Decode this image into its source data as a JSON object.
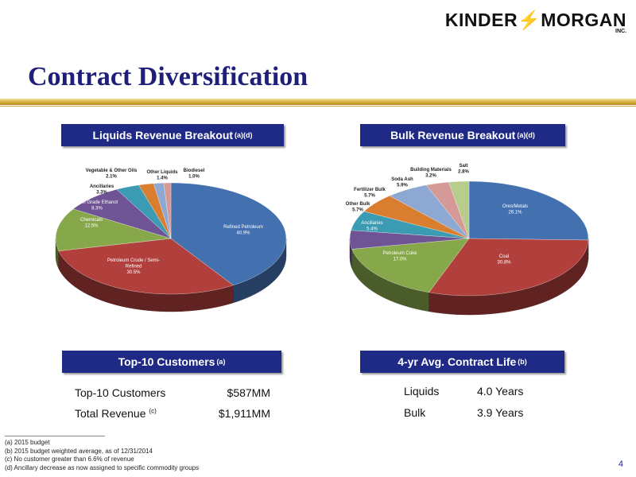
{
  "logo": {
    "name_left": "KINDER",
    "name_right": "MORGAN",
    "suffix": "INC."
  },
  "title": "Contract Diversification",
  "liquids": {
    "header": "Liquids Revenue Breakout",
    "header_sup": "(a)(d)",
    "chart_data": {
      "type": "pie",
      "slices": [
        {
          "label": "Refined Petroleum",
          "value_text": "40.9%",
          "value": 40.9,
          "color": "#4371b0"
        },
        {
          "label": "Petroleum Crude / Semi-Refined",
          "value_text": "30.5%",
          "value": 30.5,
          "color": "#b1403c"
        },
        {
          "label": "Chemicals",
          "value_text": "12.5%",
          "value": 12.5,
          "color": "#87a84a"
        },
        {
          "label": "Fuel Grade Ethanol",
          "value_text": "8.3%",
          "value": 8.3,
          "color": "#6f5495"
        },
        {
          "label": "Ancillaries",
          "value_text": "3.3%",
          "value": 3.3,
          "color": "#3b9bb3"
        },
        {
          "label": "Vegetable & Other Oils",
          "value_text": "2.1%",
          "value": 2.1,
          "color": "#d97e2e"
        },
        {
          "label": "Other Liquids",
          "value_text": "1.4%",
          "value": 1.4,
          "color": "#8ea8d4"
        },
        {
          "label": "Biodiesel",
          "value_text": "1.0%",
          "value": 1.0,
          "color": "#d59a98"
        }
      ]
    }
  },
  "bulk": {
    "header": "Bulk Revenue Breakout",
    "header_sup": "(a)(d)",
    "chart_data": {
      "type": "pie",
      "slices": [
        {
          "label": "Ores/Metals",
          "value_text": "26.1%",
          "value": 26.1,
          "color": "#4371b0"
        },
        {
          "label": "Coal",
          "value_text": "30.8%",
          "value": 30.8,
          "color": "#b1403c"
        },
        {
          "label": "Petroleum Coke",
          "value_text": "17.0%",
          "value": 17.0,
          "color": "#87a84a"
        },
        {
          "label": "Ancillaries",
          "value_text": "5.4%",
          "value": 5.4,
          "color": "#6f5495"
        },
        {
          "label": "Other Bulk",
          "value_text": "5.7%",
          "value": 5.7,
          "color": "#3b9bb3"
        },
        {
          "label": "Fertilizer Bulk",
          "value_text": "5.7%",
          "value": 5.7,
          "color": "#d97e2e"
        },
        {
          "label": "Soda Ash",
          "value_text": "5.9%",
          "value": 5.9,
          "color": "#8ea8d4"
        },
        {
          "label": "Building Materials",
          "value_text": "3.2%",
          "value": 3.2,
          "color": "#d59a98"
        },
        {
          "label": "Salt",
          "value_text": "2.8%",
          "value": 2.8,
          "color": "#b8cc8c"
        }
      ]
    }
  },
  "customers": {
    "header": "Top-10 Customers",
    "header_sup": "(a)",
    "rows": [
      {
        "label": "Top-10 Customers",
        "sup": "",
        "value": "$587MM"
      },
      {
        "label": "Total Revenue",
        "sup": "(c)",
        "value": "$1,911MM"
      }
    ]
  },
  "contract_life": {
    "header": "4-yr Avg. Contract Life",
    "header_sup": "(b)",
    "rows": [
      {
        "label": "Liquids",
        "value": "4.0 Years"
      },
      {
        "label": "Bulk",
        "value": "3.9 Years"
      }
    ]
  },
  "footnotes": [
    "(a)  2015 budget",
    "(b)  2015 budget weighted average, as of 12/31/2014",
    "(c)  No customer greater than 6.6% of revenue",
    "(d)  Ancillary decrease as now assigned to specific commodity groups"
  ],
  "page_number": "4"
}
